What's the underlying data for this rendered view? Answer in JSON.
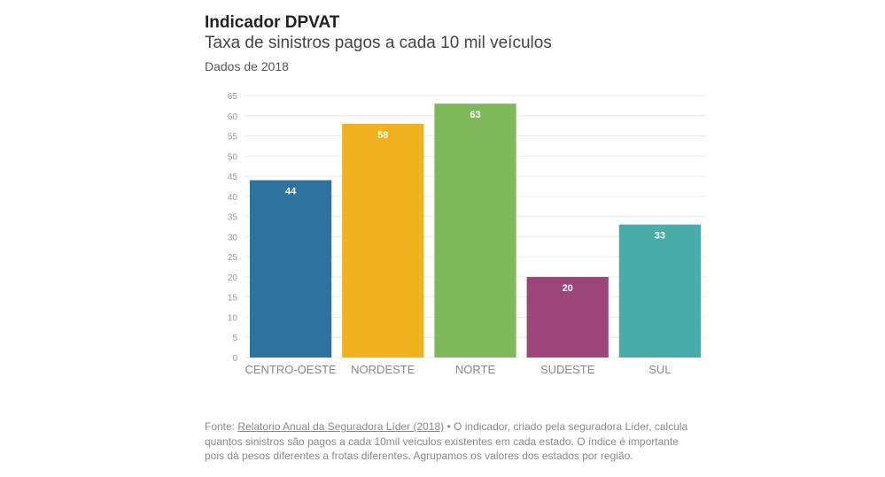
{
  "header": {
    "title": "Indicador DPVAT",
    "subtitle": "Taxa de sinistros pagos a cada 10 mil veículos",
    "note": "Dados de 2018"
  },
  "chart_data": {
    "type": "bar",
    "title": "Indicador DPVAT",
    "subtitle": "Taxa de sinistros pagos a cada 10 mil veículos",
    "xlabel": "",
    "ylabel": "",
    "categories": [
      "CENTRO-OESTE",
      "NORDESTE",
      "NORTE",
      "SUDESTE",
      "SUL"
    ],
    "values": [
      44,
      58,
      63,
      20,
      33
    ],
    "colors": [
      "#2e72a0",
      "#efb11e",
      "#7fb85a",
      "#9c457a",
      "#4aaca9"
    ],
    "data_labels": [
      "44",
      "58",
      "63",
      "20",
      "33"
    ],
    "ylim": [
      0,
      65
    ],
    "yticks": [
      0,
      5,
      10,
      15,
      20,
      25,
      30,
      35,
      40,
      45,
      50,
      55,
      60,
      65
    ],
    "grid": true,
    "legend": "none"
  },
  "footer": {
    "prefix": "Fonte: ",
    "link_text": "Relatorio Anual da Seguradora Líder (2018)",
    "text": " • O indicador, criado pela seguradora Líder, calcula quantos sinistros são pagos a cada 10mil veículos existentes em cada estado. O índice é importante pois dá pesos diferentes a frotas diferentes. Agrupamos os valores dos estados por região."
  }
}
